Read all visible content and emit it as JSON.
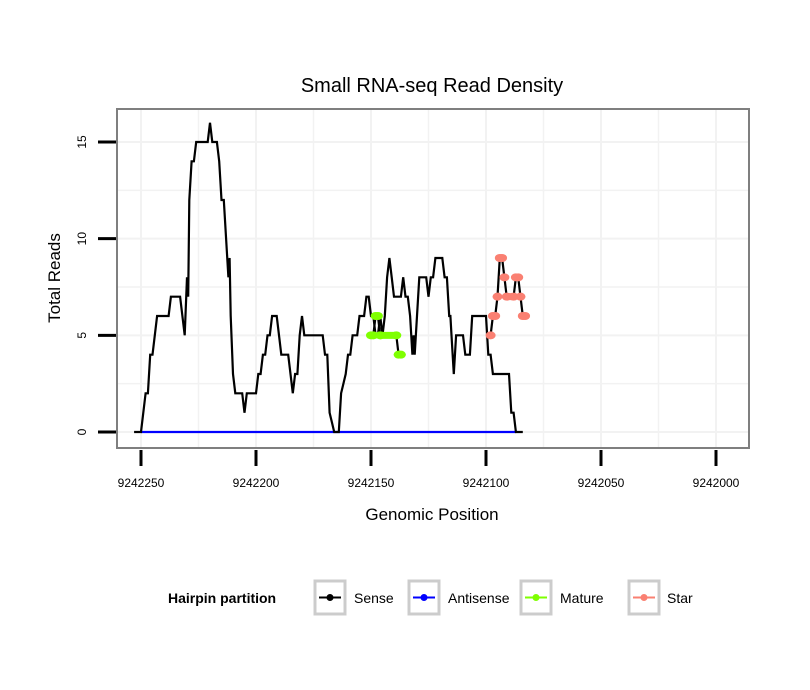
{
  "chart_data": {
    "type": "line",
    "title": "Small RNA-seq Read Density",
    "xlabel": "Genomic Position",
    "ylabel": "Total Reads",
    "xlim": [
      9242263,
      9241987
    ],
    "x_reversed": true,
    "ylim": [
      -0.8,
      16.9
    ],
    "x_ticks": [
      9242250,
      9242200,
      9242150,
      9242100,
      9242050,
      9242000
    ],
    "x_tick_labels": [
      "9242250",
      "9242200",
      "9242150",
      "9242100",
      "9242050",
      "9242000"
    ],
    "y_ticks": [
      0,
      5,
      10,
      15
    ],
    "y_tick_labels": [
      "0",
      "5",
      "10",
      "15"
    ],
    "grid": true,
    "legend": {
      "title": "Hairpin partition",
      "placement": "bottom",
      "entries": [
        {
          "name": "Sense",
          "color": "#000000"
        },
        {
          "name": "Antisense",
          "color": "#0000ff"
        },
        {
          "name": "Mature",
          "color": "#7fff00"
        },
        {
          "name": "Star",
          "color": "#fa8072"
        }
      ]
    },
    "series": [
      {
        "name": "Sense",
        "color": "#000000",
        "points": [
          [
            9242253,
            0
          ],
          [
            9242250,
            0
          ],
          [
            9242248,
            2
          ],
          [
            9242247,
            2
          ],
          [
            9242246,
            4
          ],
          [
            9242245,
            4
          ],
          [
            9242243,
            6
          ],
          [
            9242242,
            6
          ],
          [
            9242238,
            6
          ],
          [
            9242237,
            7
          ],
          [
            9242233,
            7
          ],
          [
            9242231,
            5
          ],
          [
            9242230,
            8
          ],
          [
            9242229.5,
            7
          ],
          [
            9242229,
            12
          ],
          [
            9242228,
            14
          ],
          [
            9242227,
            14
          ],
          [
            9242226,
            15
          ],
          [
            9242221,
            15
          ],
          [
            9242220,
            16
          ],
          [
            9242219,
            15
          ],
          [
            9242217,
            15
          ],
          [
            9242216,
            14
          ],
          [
            9242215,
            12
          ],
          [
            9242214,
            12
          ],
          [
            9242213,
            10
          ],
          [
            9242212,
            8
          ],
          [
            9242211.5,
            9
          ],
          [
            9242211,
            6
          ],
          [
            9242210,
            3
          ],
          [
            9242209,
            2
          ],
          [
            9242206,
            2
          ],
          [
            9242205,
            1
          ],
          [
            9242204,
            2
          ],
          [
            9242200,
            2
          ],
          [
            9242199,
            3
          ],
          [
            9242198,
            3
          ],
          [
            9242197,
            4
          ],
          [
            9242196,
            4
          ],
          [
            9242195,
            5
          ],
          [
            9242194,
            5
          ],
          [
            9242193,
            6
          ],
          [
            9242191,
            6
          ],
          [
            9242190,
            5
          ],
          [
            9242189,
            4
          ],
          [
            9242186,
            4
          ],
          [
            9242185,
            3
          ],
          [
            9242184,
            2
          ],
          [
            9242183,
            3
          ],
          [
            9242182,
            3
          ],
          [
            9242181,
            5
          ],
          [
            9242180,
            6
          ],
          [
            9242179,
            5
          ],
          [
            9242178,
            5
          ],
          [
            9242171,
            5
          ],
          [
            9242170,
            4
          ],
          [
            9242169,
            4
          ],
          [
            9242168,
            1
          ],
          [
            9242167,
            0.5
          ],
          [
            9242166,
            0
          ],
          [
            9242164,
            0
          ],
          [
            9242163,
            2
          ],
          [
            9242162,
            2.5
          ],
          [
            9242161,
            3
          ],
          [
            9242160,
            4
          ],
          [
            9242159,
            4
          ],
          [
            9242158,
            5
          ],
          [
            9242156,
            5
          ],
          [
            9242155,
            6
          ],
          [
            9242153,
            6
          ],
          [
            9242152,
            7
          ],
          [
            9242151,
            7
          ],
          [
            9242150,
            6
          ],
          [
            9242149,
            6
          ],
          [
            9242148,
            5
          ],
          [
            9242147,
            5
          ],
          [
            9242146,
            6
          ],
          [
            9242145,
            5
          ],
          [
            9242144,
            6
          ],
          [
            9242143,
            8
          ],
          [
            9242142,
            9
          ],
          [
            9242141,
            8
          ],
          [
            9242140,
            7
          ],
          [
            9242137,
            7
          ],
          [
            9242136,
            8
          ],
          [
            9242135,
            7
          ],
          [
            9242134,
            7
          ],
          [
            9242133,
            6
          ],
          [
            9242132,
            4
          ],
          [
            9242131.5,
            5
          ],
          [
            9242131,
            4
          ],
          [
            9242130,
            6
          ],
          [
            9242129,
            8
          ],
          [
            9242126,
            8
          ],
          [
            9242125,
            7
          ],
          [
            9242124,
            8
          ],
          [
            9242123,
            8
          ],
          [
            9242122,
            9
          ],
          [
            9242119,
            9
          ],
          [
            9242118,
            8
          ],
          [
            9242117,
            8
          ],
          [
            9242116,
            6
          ],
          [
            9242115.5,
            6
          ],
          [
            9242115,
            5
          ],
          [
            9242114,
            3
          ],
          [
            9242113,
            5
          ],
          [
            9242110,
            5
          ],
          [
            9242109,
            4
          ],
          [
            9242107,
            4
          ],
          [
            9242106,
            6
          ],
          [
            9242100,
            6
          ],
          [
            9242099,
            4
          ],
          [
            9242098,
            4
          ],
          [
            9242097,
            3
          ],
          [
            9242090,
            3
          ],
          [
            9242089,
            1
          ],
          [
            9242088,
            1
          ],
          [
            9242087,
            0
          ],
          [
            9242084,
            0
          ]
        ]
      },
      {
        "name": "Antisense",
        "color": "#0000ff",
        "points": [
          [
            9242250,
            0
          ],
          [
            9242087,
            0
          ]
        ]
      },
      {
        "name": "Mature",
        "color": "#7fff00",
        "points": [
          [
            9242150,
            5
          ],
          [
            9242149,
            5
          ],
          [
            9242148,
            6
          ],
          [
            9242147,
            6
          ],
          [
            9242146,
            5
          ],
          [
            9242139,
            5
          ],
          [
            9242138,
            4
          ],
          [
            9242137,
            4
          ]
        ]
      },
      {
        "name": "Star",
        "color": "#fa8072",
        "points": [
          [
            9242098,
            5
          ],
          [
            9242097,
            6
          ],
          [
            9242096,
            6
          ],
          [
            9242095,
            7
          ],
          [
            9242094,
            9
          ],
          [
            9242093,
            9
          ],
          [
            9242092,
            8
          ],
          [
            9242091,
            7
          ],
          [
            9242088,
            7
          ],
          [
            9242087,
            8
          ],
          [
            9242086,
            8
          ],
          [
            9242085,
            7
          ],
          [
            9242084,
            6
          ],
          [
            9242083,
            6
          ]
        ]
      }
    ]
  }
}
